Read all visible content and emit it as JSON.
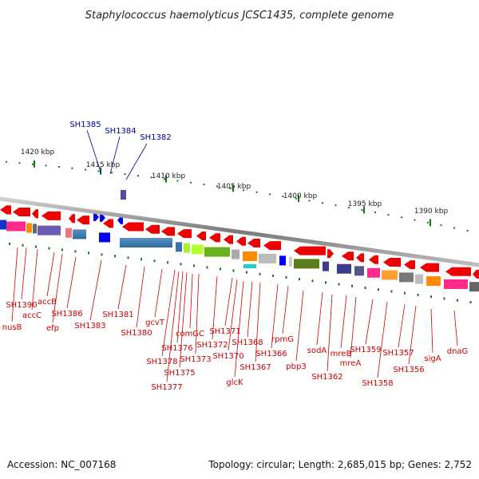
{
  "title": "Staphylococcus haemolyticus JCSC1435, complete genome",
  "footer": {
    "accession": "Accession: NC_007168",
    "summary": "Topology: circular; Length: 2,685,015 bp; Genes: 2,752"
  },
  "colors": {
    "label_red": "#cc0000",
    "label_blue": "#000099",
    "tick_green": "#117711",
    "backbone": "#888888"
  },
  "kbp_labels": [
    "1420 kbp",
    "1415 kbp",
    "1410 kbp",
    "1405 kbp",
    "1400 kbp",
    "1395 kbp",
    "1390 kbp"
  ],
  "blue_labels": [
    "SH1385",
    "SH1384",
    "SH1382"
  ],
  "red_labels": [
    "SH1390",
    "nusB",
    "accC",
    "accB",
    "efp",
    "SH1386",
    "SH1383",
    "SH1381",
    "SH1380",
    "gcvT",
    "SH1378",
    "SH1377",
    "SH1376",
    "SH1375",
    "comGC",
    "SH1373",
    "SH1372",
    "SH1371",
    "SH1370",
    "glcK",
    "SH1368",
    "SH1367",
    "SH1366",
    "rpmG",
    "pbp3",
    "sodA",
    "SH1362",
    "mreB",
    "mreA",
    "SH1359",
    "SH1358",
    "SH1357",
    "SH1356",
    "sigA",
    "dnaG"
  ]
}
